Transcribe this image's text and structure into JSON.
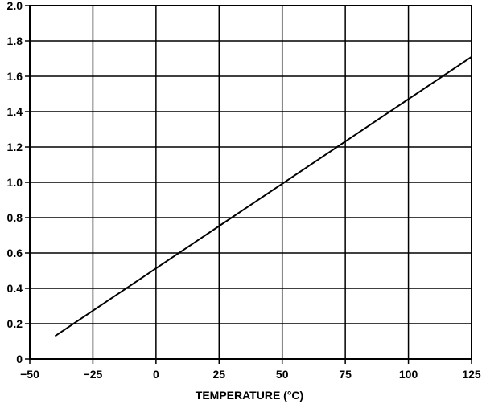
{
  "chart_data": {
    "type": "line",
    "title": "",
    "xlabel": "TEMPERATURE (°C)",
    "ylabel": "",
    "xlim": [
      -50,
      125
    ],
    "ylim": [
      0,
      2.0
    ],
    "x_ticks": [
      -50,
      -25,
      0,
      25,
      50,
      75,
      100,
      125
    ],
    "x_tick_labels": [
      "−50",
      "−25",
      "0",
      "25",
      "50",
      "75",
      "100",
      "125"
    ],
    "y_ticks": [
      0,
      0.2,
      0.4,
      0.6,
      0.8,
      1.0,
      1.2,
      1.4,
      1.6,
      1.8,
      2.0
    ],
    "y_tick_labels": [
      "0",
      "0.2",
      "0.4",
      "0.6",
      "0.8",
      "1.0",
      "1.2",
      "1.4",
      "1.6",
      "1.8",
      "2.0"
    ],
    "grid": true,
    "legend": "none",
    "colors": {
      "line": "#000000",
      "grid": "#000000",
      "background": "#ffffff"
    },
    "series": [
      {
        "x": [
          -40,
          125
        ],
        "y": [
          0.13,
          1.71
        ]
      }
    ]
  }
}
